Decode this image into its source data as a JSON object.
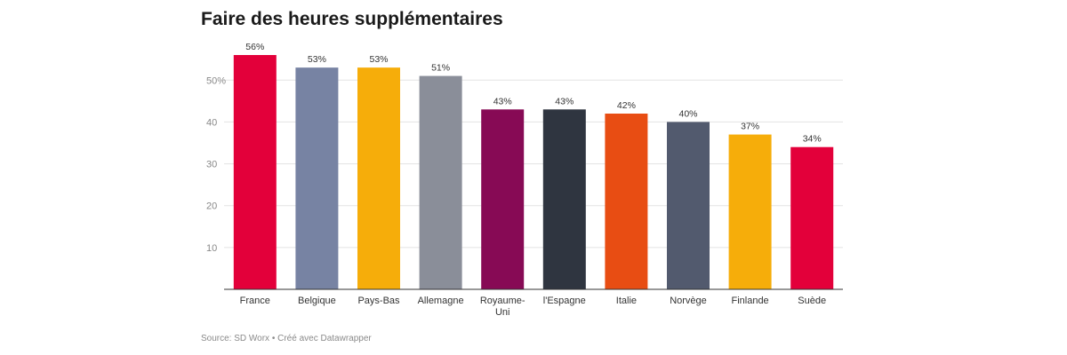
{
  "chart_data": {
    "type": "bar",
    "title": "Faire des heures supplémentaires",
    "categories": [
      "France",
      "Belgique",
      "Pays-Bas",
      "Allemagne",
      "Royaume-Uni",
      "l'Espagne",
      "Italie",
      "Norvège",
      "Finlande",
      "Suède"
    ],
    "category_lines": [
      [
        "France"
      ],
      [
        "Belgique"
      ],
      [
        "Pays-Bas"
      ],
      [
        "Allemagne"
      ],
      [
        "Royaume-",
        "Uni"
      ],
      [
        "l'Espagne"
      ],
      [
        "Italie"
      ],
      [
        "Norvège"
      ],
      [
        "Finlande"
      ],
      [
        "Suède"
      ]
    ],
    "values": [
      56,
      53,
      53,
      51,
      43,
      43,
      42,
      40,
      37,
      34
    ],
    "data_labels": [
      "56%",
      "53%",
      "53%",
      "51%",
      "43%",
      "43%",
      "42%",
      "40%",
      "37%",
      "34%"
    ],
    "colors": [
      "#e3003a",
      "#7783a3",
      "#f6ad0a",
      "#8a8e99",
      "#870a55",
      "#2f3540",
      "#e84d13",
      "#525a6e",
      "#f6ad0a",
      "#e3003a"
    ],
    "yticks": [
      10,
      20,
      30,
      40,
      50
    ],
    "ytick_labels": [
      "10",
      "20",
      "30",
      "40",
      "50%"
    ],
    "ylim": [
      0,
      56
    ],
    "grid": true,
    "xlabel": "",
    "ylabel": ""
  },
  "footer": {
    "source": "Source: SD Worx • Créé avec Datawrapper"
  }
}
